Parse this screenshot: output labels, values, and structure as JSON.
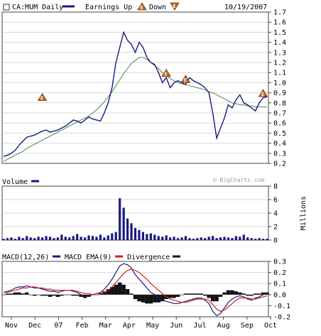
{
  "header": {
    "symbol_label": "CA:MUM Daily",
    "earnings_up_label": "Earnings Up",
    "down_label": "Down",
    "date": "10/19/2007",
    "watermark": "© BigCharts.com"
  },
  "colors": {
    "price": "#1a1a80",
    "ma": "#4a8a4a",
    "volume": "#1a1a80",
    "macd": "#1a1a80",
    "ema": "#cc2222",
    "divergence": "#111111",
    "earnings_marker": "#b5651d",
    "grid": "#d9d9d9",
    "frame": "#444444"
  },
  "chart_data": [
    {
      "type": "line",
      "name": "price",
      "x_ticks": [
        "Nov",
        "Dec",
        "07",
        "Feb",
        "Mar",
        "Apr",
        "May",
        "Jun",
        "Jul",
        "Aug",
        "Sep",
        "Oct"
      ],
      "ylim": [
        0.2,
        1.7
      ],
      "yticks": [
        0.2,
        0.3,
        0.4,
        0.5,
        0.6,
        0.7,
        0.8,
        0.9,
        1.0,
        1.1,
        1.2,
        1.3,
        1.4,
        1.5,
        1.6,
        1.7
      ],
      "series": [
        {
          "values": [
            0.27,
            0.28,
            0.3,
            0.33,
            0.38,
            0.42,
            0.46,
            0.47,
            0.48,
            0.5,
            0.52,
            0.53,
            0.51,
            0.52,
            0.53,
            0.55,
            0.57,
            0.6,
            0.63,
            0.62,
            0.6,
            0.63,
            0.66,
            0.64,
            0.63,
            0.62,
            0.7,
            0.8,
            0.95,
            1.2,
            1.35,
            1.5,
            1.42,
            1.38,
            1.3,
            1.4,
            1.35,
            1.25,
            1.2,
            1.18,
            1.1,
            1.0,
            1.05,
            0.95,
            1.0,
            1.02,
            1.0,
            0.98,
            1.05,
            1.02,
            1.0,
            0.98,
            0.95,
            0.9,
            0.7,
            0.45,
            0.55,
            0.65,
            0.78,
            0.75,
            0.83,
            0.88,
            0.8,
            0.78,
            0.75,
            0.72,
            0.8,
            0.85,
            0.86
          ]
        },
        {
          "values": [
            0.22,
            0.24,
            0.26,
            0.28,
            0.3,
            0.32,
            0.35,
            0.37,
            0.39,
            0.41,
            0.43,
            0.45,
            0.47,
            0.49,
            0.51,
            0.53,
            0.55,
            0.57,
            0.59,
            0.61,
            0.63,
            0.65,
            0.67,
            0.7,
            0.73,
            0.77,
            0.81,
            0.86,
            0.91,
            0.97,
            1.03,
            1.09,
            1.14,
            1.19,
            1.22,
            1.25,
            1.25,
            1.23,
            1.2,
            1.17,
            1.14,
            1.1,
            1.07,
            1.04,
            1.02,
            1.0,
            0.99,
            0.98,
            0.97,
            0.96,
            0.95,
            0.94,
            0.93,
            0.91,
            0.9,
            0.88,
            0.86,
            0.84,
            0.82,
            0.8,
            0.79,
            0.78,
            0.78,
            0.77,
            0.77,
            0.76,
            0.76,
            0.76,
            0.76
          ]
        }
      ],
      "earnings_markers": [
        {
          "label": "E",
          "x_index": 10,
          "y": 0.78
        },
        {
          "label": "E",
          "x_index": 42,
          "y": 1.02
        },
        {
          "label": "E",
          "x_index": 47,
          "y": 0.96
        },
        {
          "label": "E",
          "x_index": 67,
          "y": 0.82
        }
      ]
    },
    {
      "type": "bar",
      "name": "Volume",
      "ylabel": "Millions",
      "ylim": [
        0,
        8
      ],
      "yticks": [
        0,
        2,
        4,
        6,
        8
      ],
      "values": [
        0.2,
        0.3,
        0.4,
        0.2,
        0.5,
        0.3,
        0.6,
        0.4,
        0.3,
        0.5,
        0.4,
        0.6,
        0.5,
        0.3,
        0.4,
        0.8,
        0.5,
        0.4,
        0.6,
        0.9,
        0.5,
        0.4,
        0.7,
        0.6,
        0.5,
        0.8,
        0.4,
        0.7,
        1.0,
        1.2,
        6.2,
        4.8,
        3.2,
        2.5,
        1.8,
        1.5,
        1.2,
        0.9,
        1.0,
        0.8,
        0.6,
        0.5,
        0.7,
        0.4,
        0.5,
        0.3,
        0.4,
        0.6,
        0.3,
        0.2,
        0.3,
        0.4,
        0.3,
        0.5,
        0.6,
        0.3,
        0.4,
        0.5,
        0.4,
        0.3,
        0.6,
        0.5,
        0.8,
        0.4,
        0.3,
        0.2,
        0.3,
        0.2,
        0.2
      ]
    },
    {
      "type": "line",
      "name": "MACD",
      "legend": [
        "MACD(12,26)",
        "MACD EMA(9)",
        "Divergence"
      ],
      "ylim": [
        -0.2,
        0.3
      ],
      "yticks": [
        -0.2,
        -0.1,
        0.0,
        0.1,
        0.2,
        0.3
      ],
      "series": [
        {
          "name": "MACD(12,26)",
          "values": [
            0.02,
            0.03,
            0.04,
            0.06,
            0.07,
            0.07,
            0.08,
            0.07,
            0.06,
            0.06,
            0.05,
            0.04,
            0.03,
            0.03,
            0.02,
            0.03,
            0.04,
            0.04,
            0.03,
            0.02,
            0.0,
            -0.02,
            -0.01,
            0.0,
            0.01,
            0.02,
            0.05,
            0.09,
            0.14,
            0.2,
            0.26,
            0.28,
            0.27,
            0.24,
            0.18,
            0.14,
            0.1,
            0.06,
            0.02,
            0.0,
            -0.03,
            -0.05,
            -0.06,
            -0.07,
            -0.08,
            -0.08,
            -0.07,
            -0.06,
            -0.05,
            -0.04,
            -0.03,
            -0.03,
            -0.05,
            -0.08,
            -0.15,
            -0.19,
            -0.17,
            -0.12,
            -0.07,
            -0.04,
            -0.02,
            -0.01,
            -0.02,
            -0.04,
            -0.05,
            -0.03,
            -0.02,
            0.0,
            0.01
          ]
        },
        {
          "name": "MACD EMA(9)",
          "values": [
            0.02,
            0.02,
            0.03,
            0.04,
            0.05,
            0.06,
            0.06,
            0.07,
            0.07,
            0.06,
            0.06,
            0.05,
            0.05,
            0.04,
            0.04,
            0.04,
            0.04,
            0.04,
            0.04,
            0.03,
            0.02,
            0.01,
            0.01,
            0.0,
            0.01,
            0.01,
            0.02,
            0.04,
            0.07,
            0.11,
            0.15,
            0.19,
            0.22,
            0.23,
            0.22,
            0.2,
            0.17,
            0.14,
            0.1,
            0.07,
            0.04,
            0.01,
            -0.02,
            -0.04,
            -0.05,
            -0.06,
            -0.07,
            -0.07,
            -0.06,
            -0.05,
            -0.04,
            -0.04,
            -0.04,
            -0.05,
            -0.09,
            -0.13,
            -0.15,
            -0.14,
            -0.11,
            -0.08,
            -0.05,
            -0.03,
            -0.03,
            -0.03,
            -0.04,
            -0.04,
            -0.03,
            -0.02,
            -0.01
          ]
        },
        {
          "name": "Divergence",
          "values": [
            0.0,
            0.01,
            0.01,
            0.02,
            0.02,
            0.01,
            0.02,
            0.0,
            -0.01,
            0.0,
            -0.01,
            -0.01,
            -0.02,
            -0.01,
            -0.02,
            -0.01,
            0.0,
            0.0,
            -0.01,
            -0.01,
            -0.02,
            -0.03,
            -0.02,
            0.0,
            0.0,
            0.01,
            0.03,
            0.05,
            0.07,
            0.09,
            0.11,
            0.09,
            0.05,
            0.01,
            -0.04,
            -0.06,
            -0.07,
            -0.08,
            -0.08,
            -0.07,
            -0.07,
            -0.06,
            -0.04,
            -0.03,
            -0.03,
            -0.02,
            0.0,
            0.01,
            0.01,
            0.01,
            0.01,
            0.01,
            -0.01,
            -0.03,
            -0.06,
            -0.06,
            -0.02,
            0.02,
            0.04,
            0.04,
            0.03,
            0.02,
            0.01,
            -0.01,
            -0.01,
            0.01,
            0.01,
            0.02,
            0.02
          ]
        }
      ]
    }
  ]
}
